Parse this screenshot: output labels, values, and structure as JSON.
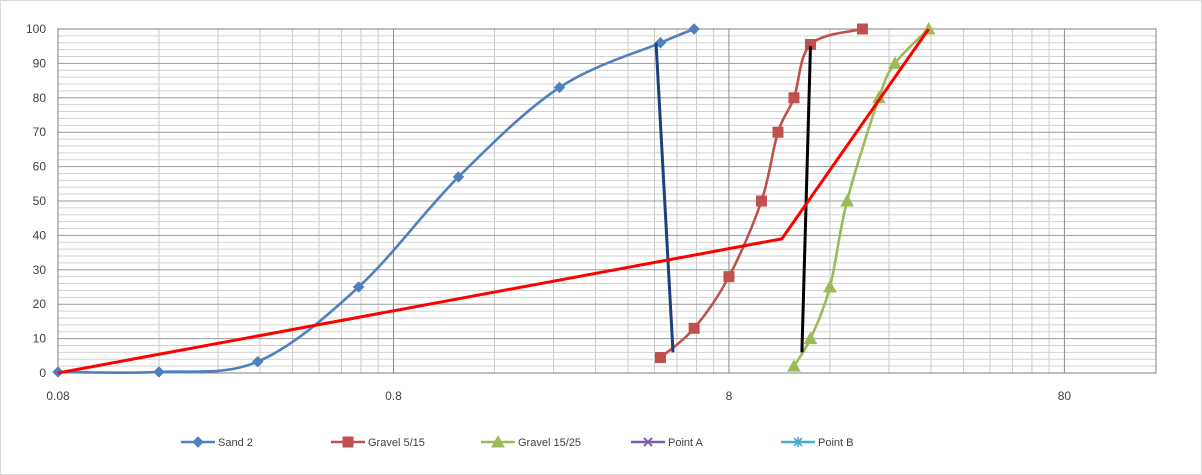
{
  "chart_data": {
    "type": "line",
    "x_scale": "log",
    "xlim": [
      0.08,
      150
    ],
    "ylim": [
      0,
      100
    ],
    "x_ticks": [
      0.08,
      0.8,
      8,
      80
    ],
    "y_ticks": [
      0,
      10,
      20,
      30,
      40,
      50,
      60,
      70,
      80,
      90,
      100
    ],
    "grid": true,
    "legend_position": "bottom",
    "title": "",
    "xlabel": "",
    "ylabel": "",
    "series": [
      {
        "name": "Sand 2",
        "color": "#4f81bd",
        "marker": "diamond",
        "smooth": true,
        "points": [
          [
            0.08,
            0.3
          ],
          [
            0.16,
            0.3
          ],
          [
            0.315,
            3.3
          ],
          [
            0.63,
            25
          ],
          [
            1.25,
            57
          ],
          [
            2.5,
            83
          ],
          [
            5,
            96
          ],
          [
            6.3,
            100
          ]
        ]
      },
      {
        "name": "Gravel 5/15",
        "color": "#c0504d",
        "marker": "square",
        "smooth": true,
        "points": [
          [
            5,
            4.5
          ],
          [
            6.3,
            13
          ],
          [
            8,
            28
          ],
          [
            10,
            50
          ],
          [
            11.2,
            70
          ],
          [
            12.5,
            80
          ],
          [
            14,
            95.5
          ],
          [
            20,
            100
          ]
        ]
      },
      {
        "name": "Gravel 15/25",
        "color": "#9bbb59",
        "marker": "triangle",
        "smooth": true,
        "points": [
          [
            12.5,
            2
          ],
          [
            14,
            10
          ],
          [
            16,
            25
          ],
          [
            18,
            50
          ],
          [
            22.4,
            80
          ],
          [
            25,
            90
          ],
          [
            31.5,
            100
          ]
        ]
      },
      {
        "name": "Point A",
        "color": "#7f5fa8",
        "marker": "x",
        "smooth": false,
        "points": []
      },
      {
        "name": "Point B",
        "color": "#4bacc6",
        "marker": "star",
        "smooth": false,
        "points": []
      }
    ],
    "overlay_lines": [
      {
        "color": "#1f3f7f",
        "width": 3,
        "points": [
          [
            4.85,
            96
          ],
          [
            5.45,
            6
          ]
        ]
      },
      {
        "color": "#000000",
        "width": 3,
        "points": [
          [
            13.2,
            6
          ],
          [
            14.0,
            95
          ]
        ]
      },
      {
        "color": "#ff0000",
        "width": 3,
        "points": [
          [
            0.08,
            0
          ],
          [
            11.5,
            39
          ],
          [
            31.5,
            100
          ]
        ]
      }
    ]
  }
}
